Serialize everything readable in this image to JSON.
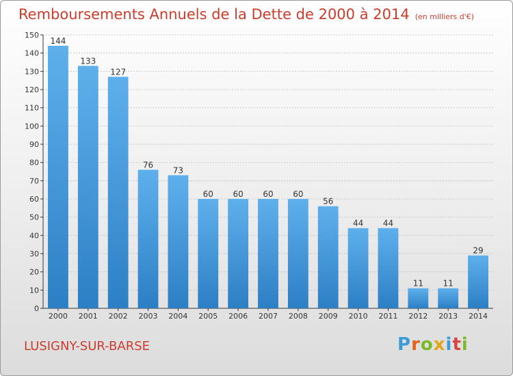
{
  "title": "Remboursements Annuels de la Dette de 2000 à 2014",
  "subtitle": "(en milliers d'€)",
  "city": "LUSIGNY-SUR-BARSE",
  "logo": [
    "P",
    "r",
    "o",
    "x",
    "i",
    "t",
    "i"
  ],
  "colors": {
    "title": "#cc3c2c",
    "bar_top": "#5eb0ec",
    "bar_bottom": "#2c7fc4"
  },
  "chart_data": {
    "type": "bar",
    "title": "Remboursements Annuels de la Dette de 2000 à 2014",
    "subtitle": "(en milliers d'€)",
    "categories": [
      "2000",
      "2001",
      "2002",
      "2003",
      "2004",
      "2005",
      "2006",
      "2007",
      "2008",
      "2009",
      "2010",
      "2011",
      "2012",
      "2013",
      "2014"
    ],
    "values": [
      144,
      133,
      127,
      76,
      73,
      60,
      60,
      60,
      60,
      56,
      44,
      44,
      11,
      11,
      29
    ],
    "ylim": [
      0,
      150
    ],
    "yticks": [
      0,
      10,
      20,
      30,
      40,
      50,
      60,
      70,
      80,
      90,
      100,
      110,
      120,
      130,
      140,
      150
    ],
    "grid": true,
    "xlabel": "",
    "ylabel": ""
  }
}
